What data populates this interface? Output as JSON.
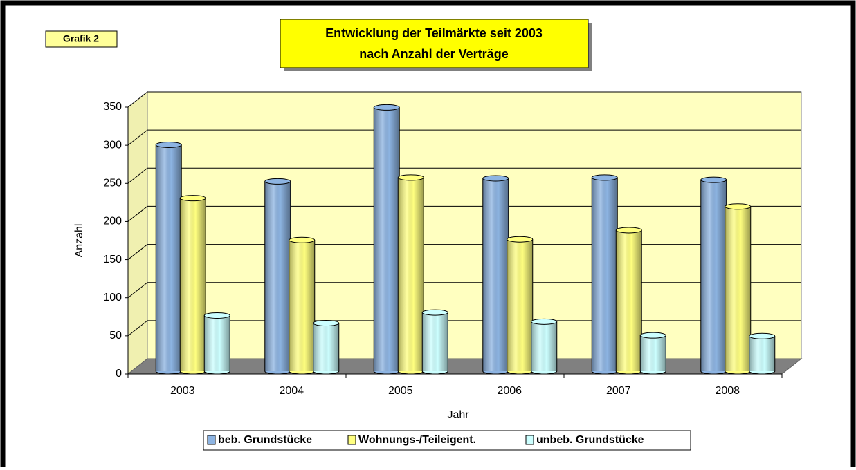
{
  "chart_data": {
    "type": "bar3d",
    "label": "Grafik 2",
    "title": "Entwicklung der Teilmärkte seit 2003",
    "subtitle": "nach Anzahl der Verträge",
    "x_label": "Jahr",
    "y_label": "Anzahl",
    "categories": [
      "2003",
      "2004",
      "2005",
      "2006",
      "2007",
      "2008"
    ],
    "series": [
      {
        "name": "beb. Grundstücke",
        "color": "#8db4e2",
        "values": [
          297,
          249,
          346,
          253,
          254,
          251
        ]
      },
      {
        "name": "Wohnungs-/Teileigent.",
        "color": "#ffff80",
        "values": [
          227,
          172,
          254,
          173,
          185,
          216
        ]
      },
      {
        "name": "unbeb. Grundstücke",
        "color": "#ccffff",
        "values": [
          73,
          63,
          77,
          65,
          47,
          46
        ]
      }
    ],
    "ylim": [
      0,
      350
    ],
    "yticks": [
      0,
      50,
      100,
      150,
      200,
      250,
      300,
      350
    ],
    "grid": true,
    "legend": "bottom"
  }
}
